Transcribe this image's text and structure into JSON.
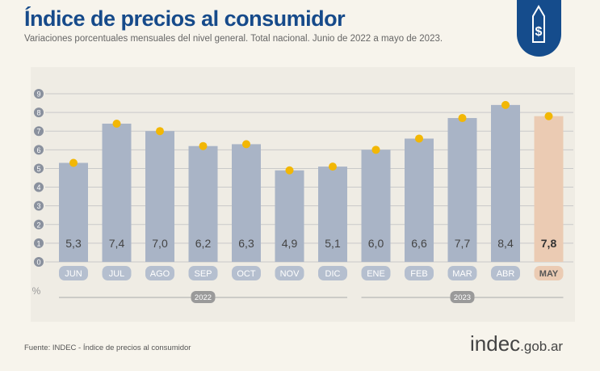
{
  "header": {
    "title": "Índice de precios al consumidor",
    "subtitle": "Variaciones porcentuales mensuales del nivel general. Total nacional. Junio de 2022 a mayo de 2023."
  },
  "footer": {
    "source": "Fuente: INDEC - Índice de precios al consumidor",
    "brand_main": "indec",
    "brand_suffix": ".gob.ar"
  },
  "chart_data": {
    "type": "bar",
    "title": "Índice de precios al consumidor",
    "ylabel": "%",
    "ylim": [
      0,
      9
    ],
    "yticks": [
      "0",
      "1",
      "2",
      "3",
      "4",
      "5",
      "6",
      "7",
      "8",
      "9"
    ],
    "categories": [
      "JUN",
      "JUL",
      "AGO",
      "SEP",
      "OCT",
      "NOV",
      "DIC",
      "ENE",
      "FEB",
      "MAR",
      "ABR",
      "MAY"
    ],
    "values": [
      5.3,
      7.4,
      7.0,
      6.2,
      6.3,
      4.9,
      5.1,
      6.0,
      6.6,
      7.7,
      8.4,
      7.8
    ],
    "value_labels": [
      "5,3",
      "7,4",
      "7,0",
      "6,2",
      "6,3",
      "4,9",
      "5,1",
      "6,0",
      "6,6",
      "7,7",
      "8,4",
      "7,8"
    ],
    "years": [
      {
        "label": "2022",
        "from": 0,
        "to": 6
      },
      {
        "label": "2023",
        "from": 7,
        "to": 11
      }
    ],
    "highlight_index": 11,
    "colors": {
      "bar": "#a9b4c6",
      "highlight": "#ebcbb3",
      "dot": "#f2b705",
      "grid": "#c9c9c9",
      "axis_badge": "#8a919e"
    }
  }
}
